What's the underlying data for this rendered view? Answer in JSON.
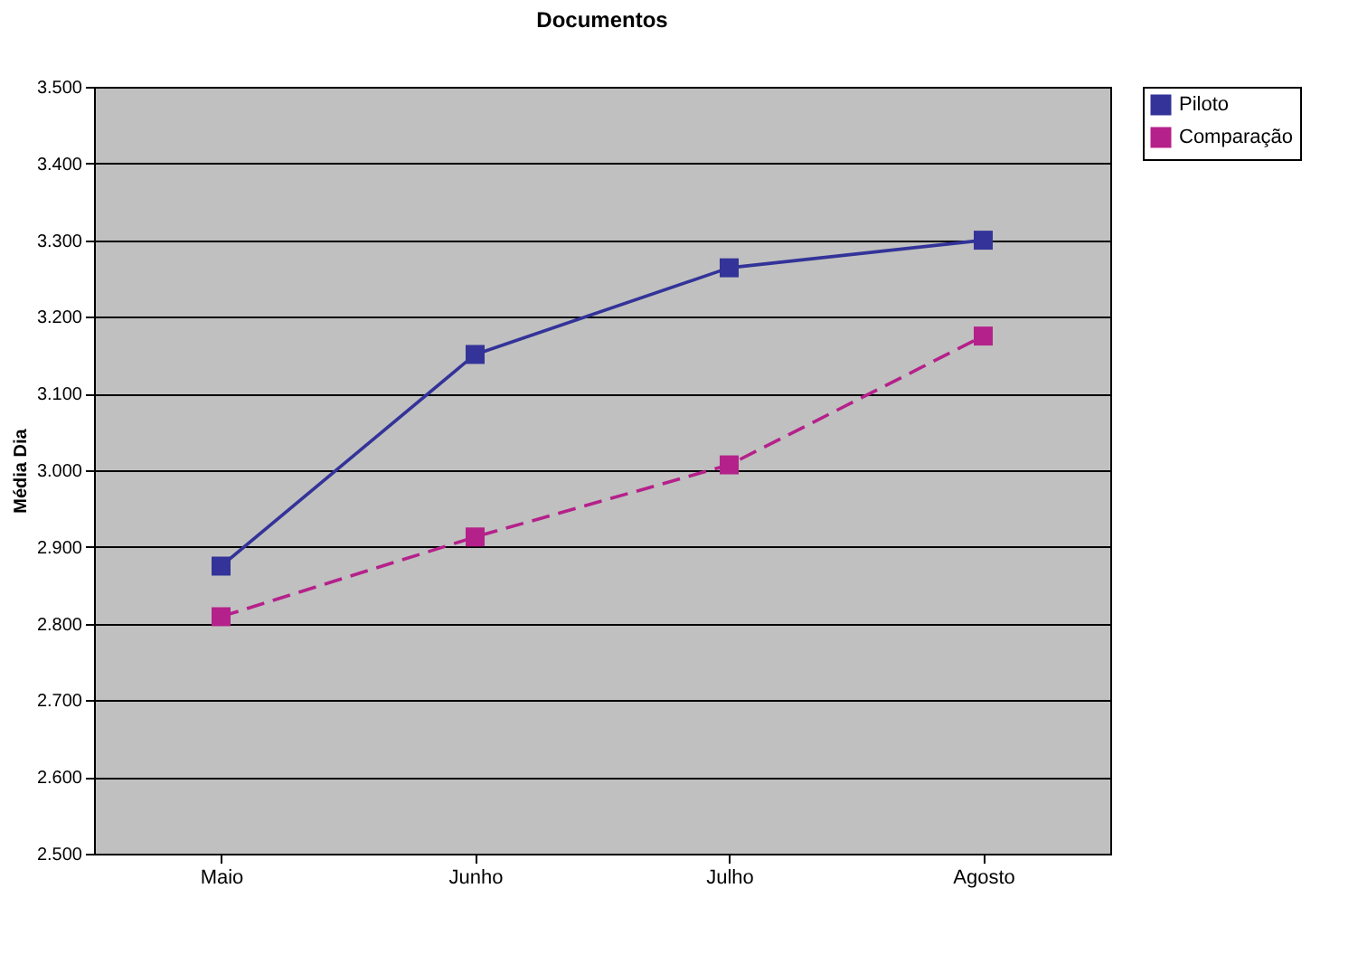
{
  "chart_data": {
    "type": "line",
    "title": "Documentos",
    "ylabel": "Média Dia",
    "categories": [
      "Maio",
      "Junho",
      "Julho",
      "Agosto"
    ],
    "series": [
      {
        "name": "Piloto",
        "color": "#333399",
        "values": [
          2875,
          3151,
          3264,
          3300
        ],
        "line_style": "solid"
      },
      {
        "name": "Comparação",
        "color": "#b5218a",
        "values": [
          2809,
          2913,
          3007,
          3175
        ],
        "line_style": "dashed"
      }
    ],
    "ylim": [
      2500,
      3500
    ],
    "yticks": [
      {
        "value": 2500,
        "label": "2.500"
      },
      {
        "value": 2600,
        "label": "2.600"
      },
      {
        "value": 2700,
        "label": "2.700"
      },
      {
        "value": 2800,
        "label": "2.800"
      },
      {
        "value": 2900,
        "label": "2.900"
      },
      {
        "value": 3000,
        "label": "3.000"
      },
      {
        "value": 3100,
        "label": "3.100"
      },
      {
        "value": 3200,
        "label": "3.200"
      },
      {
        "value": 3300,
        "label": "3.300"
      },
      {
        "value": 3400,
        "label": "3.400"
      },
      {
        "value": 3500,
        "label": "3.500"
      }
    ],
    "grid": "y",
    "legend": "right",
    "marker": "square"
  }
}
